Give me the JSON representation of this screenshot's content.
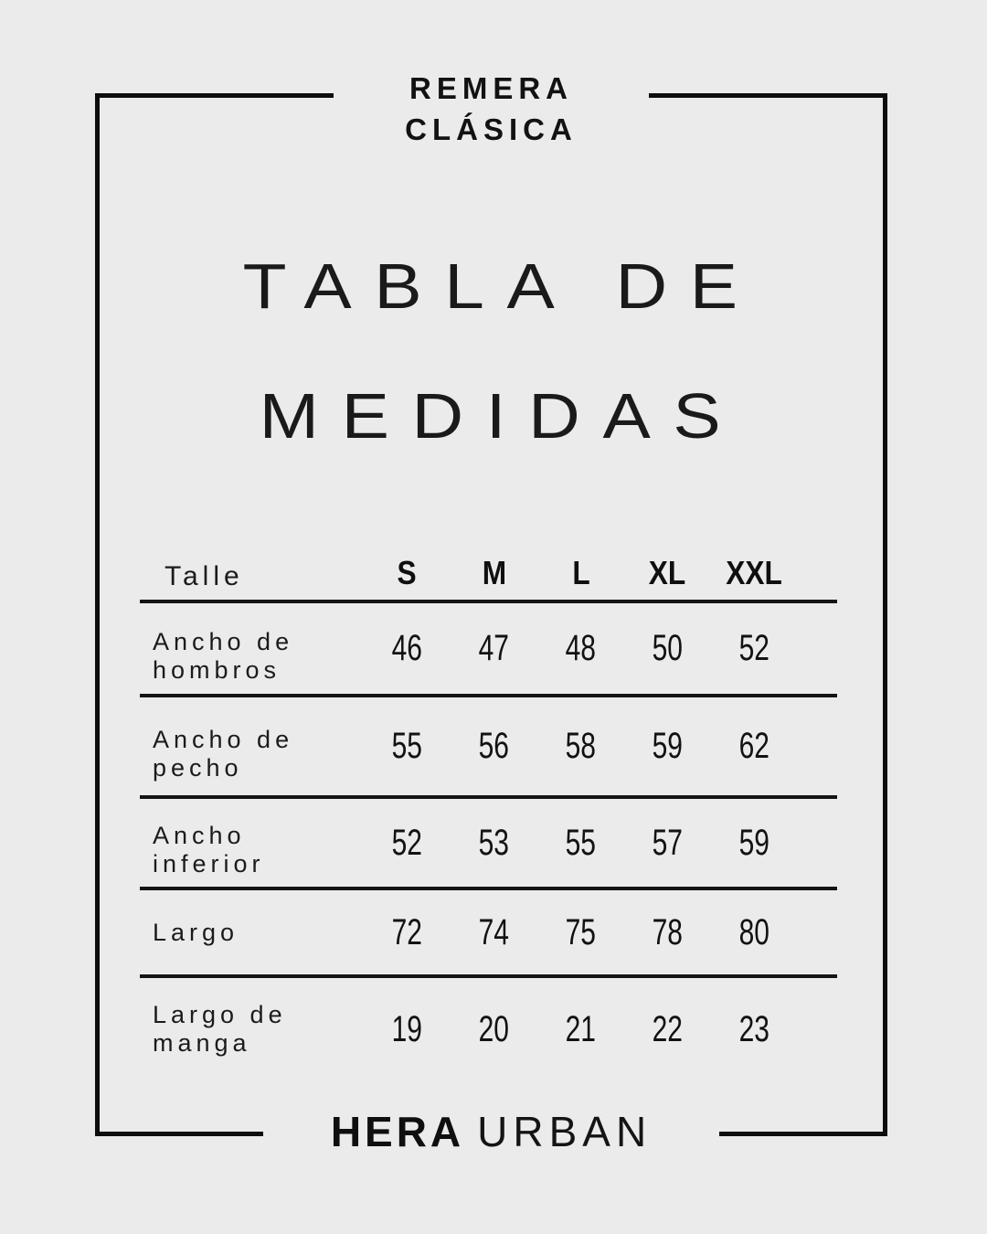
{
  "page": {
    "background_color": "#ebebeb",
    "ink_color": "#121212"
  },
  "header": {
    "product_line1": "REMERA",
    "product_line2": "CLÁSICA"
  },
  "title": {
    "line1": "TABLA DE",
    "line2": "MEDIDAS"
  },
  "table": {
    "corner_label": "Talle",
    "sizes": [
      "S",
      "M",
      "L",
      "XL",
      "XXL"
    ],
    "rows": [
      {
        "label": "Ancho de hombros",
        "label_lines": [
          "Ancho de",
          "hombros"
        ],
        "values": [
          "46",
          "47",
          "48",
          "50",
          "52"
        ]
      },
      {
        "label": "Ancho de pecho",
        "label_lines": [
          "Ancho de",
          "pecho"
        ],
        "values": [
          "55",
          "56",
          "58",
          "59",
          "62"
        ]
      },
      {
        "label": "Ancho inferior",
        "label_lines": [
          "Ancho",
          "inferior"
        ],
        "values": [
          "52",
          "53",
          "55",
          "57",
          "59"
        ]
      },
      {
        "label": "Largo",
        "label_lines": [
          "Largo"
        ],
        "values": [
          "72",
          "74",
          "75",
          "78",
          "80"
        ]
      },
      {
        "label": "Largo de manga",
        "label_lines": [
          "Largo de",
          "manga"
        ],
        "values": [
          "19",
          "20",
          "21",
          "22",
          "23"
        ]
      }
    ]
  },
  "footer": {
    "brand_bold": "HERA",
    "brand_light": "URBAN"
  }
}
